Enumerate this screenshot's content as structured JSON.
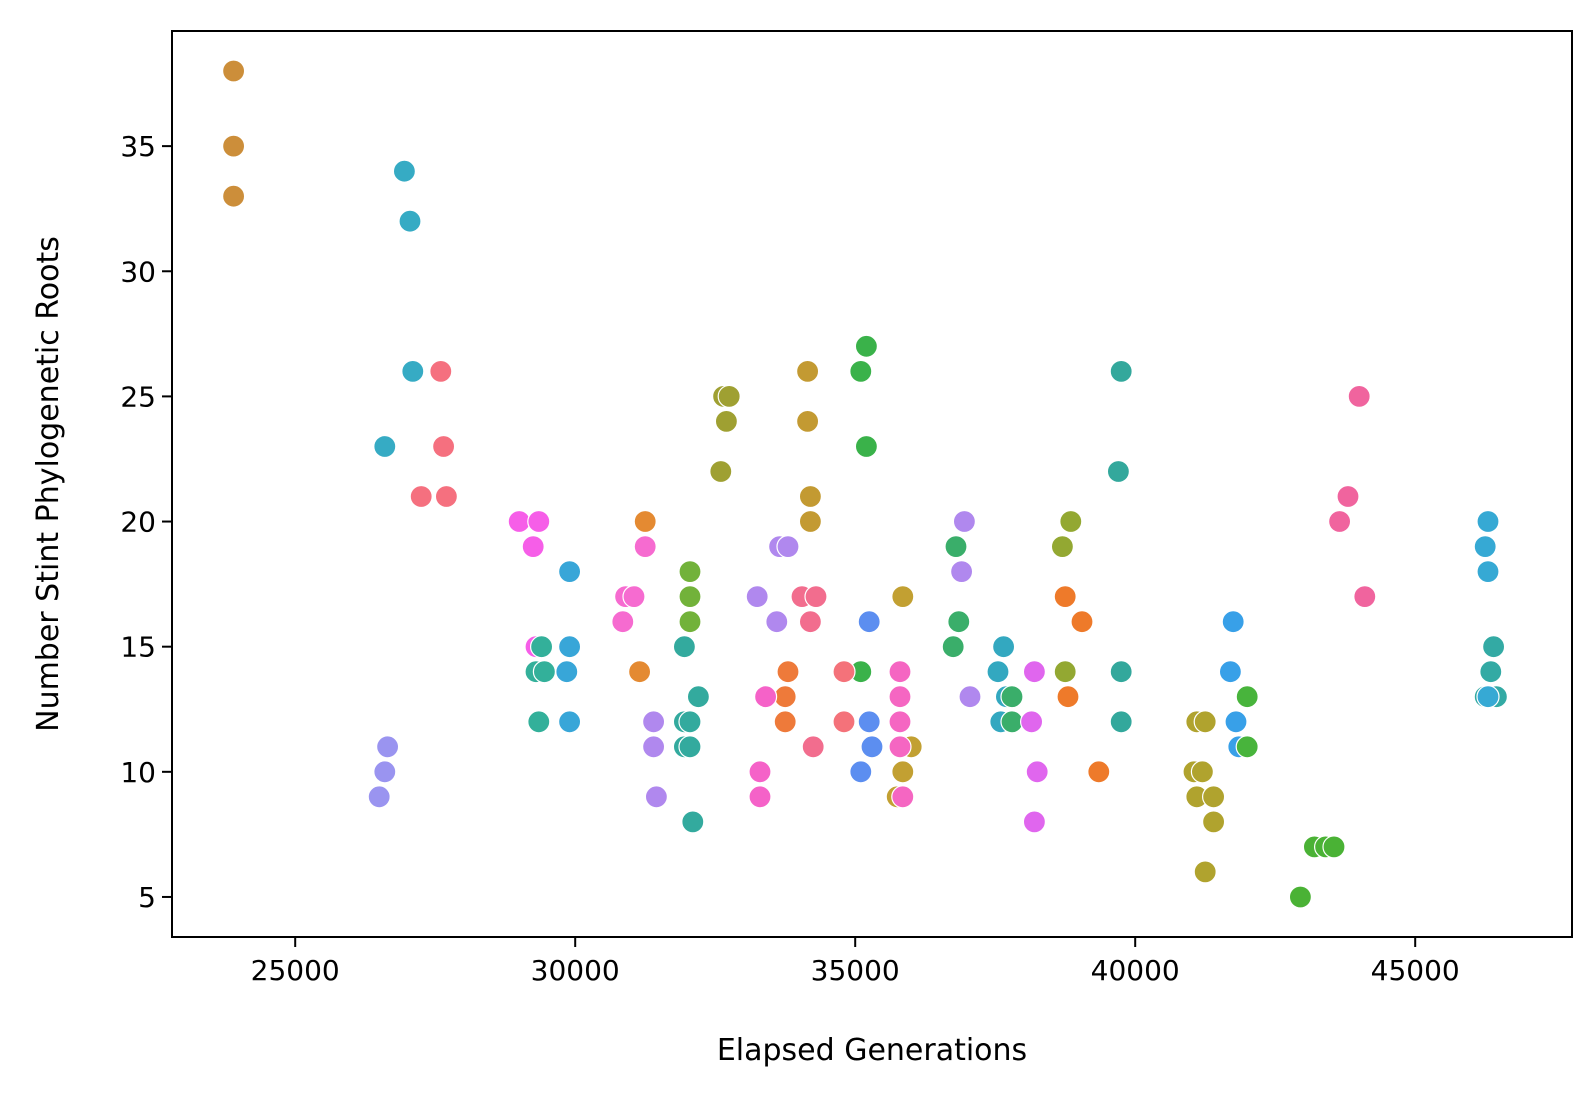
{
  "chart_data": {
    "type": "scatter",
    "title": "",
    "xlabel": "Elapsed Generations",
    "ylabel": "Number Stint Phylogenetic Roots",
    "xlim": [
      22800,
      47800
    ],
    "ylim": [
      3.4,
      39.6
    ],
    "xticks": [
      25000,
      30000,
      35000,
      40000,
      45000
    ],
    "yticks": [
      5,
      10,
      15,
      20,
      25,
      30,
      35
    ],
    "xtick_labels": [
      "25000",
      "30000",
      "35000",
      "40000",
      "45000"
    ],
    "ytick_labels": [
      "5",
      "10",
      "15",
      "20",
      "25",
      "30",
      "35"
    ],
    "grid": false,
    "legend": "none",
    "points": [
      {
        "x": 23900,
        "y": 38,
        "color": "#cc8e3a"
      },
      {
        "x": 23900,
        "y": 35,
        "color": "#cc8e3a"
      },
      {
        "x": 23900,
        "y": 33,
        "color": "#cc8e3a"
      },
      {
        "x": 26950,
        "y": 34,
        "color": "#36abc4"
      },
      {
        "x": 27050,
        "y": 32,
        "color": "#36abc4"
      },
      {
        "x": 27100,
        "y": 26,
        "color": "#36abc4"
      },
      {
        "x": 26600,
        "y": 23,
        "color": "#36abc4"
      },
      {
        "x": 27600,
        "y": 26,
        "color": "#f5707f"
      },
      {
        "x": 27650,
        "y": 23,
        "color": "#f5707f"
      },
      {
        "x": 27250,
        "y": 21,
        "color": "#f5707f"
      },
      {
        "x": 27700,
        "y": 21,
        "color": "#f5707f"
      },
      {
        "x": 26650,
        "y": 11,
        "color": "#9a94f0"
      },
      {
        "x": 26600,
        "y": 10,
        "color": "#9a94f0"
      },
      {
        "x": 26500,
        "y": 9,
        "color": "#9a94f0"
      },
      {
        "x": 29000,
        "y": 20,
        "color": "#f65ee8"
      },
      {
        "x": 29350,
        "y": 20,
        "color": "#f65ee8"
      },
      {
        "x": 29250,
        "y": 19,
        "color": "#f65ee8"
      },
      {
        "x": 29300,
        "y": 15,
        "color": "#f65ee8"
      },
      {
        "x": 29400,
        "y": 15,
        "color": "#33b09a"
      },
      {
        "x": 29300,
        "y": 14,
        "color": "#33b09a"
      },
      {
        "x": 29450,
        "y": 14,
        "color": "#33b09a"
      },
      {
        "x": 29350,
        "y": 12,
        "color": "#33b09a"
      },
      {
        "x": 29900,
        "y": 18,
        "color": "#38a6d8"
      },
      {
        "x": 29900,
        "y": 15,
        "color": "#38a6d8"
      },
      {
        "x": 29850,
        "y": 14,
        "color": "#38a6d8"
      },
      {
        "x": 29900,
        "y": 12,
        "color": "#38a6d8"
      },
      {
        "x": 30900,
        "y": 17,
        "color": "#f66bd0"
      },
      {
        "x": 31050,
        "y": 17,
        "color": "#f66bd0"
      },
      {
        "x": 30850,
        "y": 16,
        "color": "#f66bd0"
      },
      {
        "x": 31250,
        "y": 20,
        "color": "#e48a32"
      },
      {
        "x": 31250,
        "y": 19,
        "color": "#f66bd0"
      },
      {
        "x": 31150,
        "y": 14,
        "color": "#e48a32"
      },
      {
        "x": 31400,
        "y": 12,
        "color": "#b088ee"
      },
      {
        "x": 31400,
        "y": 11,
        "color": "#b088ee"
      },
      {
        "x": 31450,
        "y": 9,
        "color": "#b088ee"
      },
      {
        "x": 32050,
        "y": 18,
        "color": "#72b23a"
      },
      {
        "x": 32050,
        "y": 17,
        "color": "#72b23a"
      },
      {
        "x": 32050,
        "y": 16,
        "color": "#72b23a"
      },
      {
        "x": 31950,
        "y": 15,
        "color": "#33aa9e"
      },
      {
        "x": 32200,
        "y": 13,
        "color": "#33aa9e"
      },
      {
        "x": 31950,
        "y": 12,
        "color": "#33aa9e"
      },
      {
        "x": 32050,
        "y": 12,
        "color": "#33aa9e"
      },
      {
        "x": 31950,
        "y": 11,
        "color": "#33aa9e"
      },
      {
        "x": 32050,
        "y": 11,
        "color": "#33aa9e"
      },
      {
        "x": 32100,
        "y": 8,
        "color": "#33aa9e"
      },
      {
        "x": 32650,
        "y": 25,
        "color": "#9fa032"
      },
      {
        "x": 32750,
        "y": 25,
        "color": "#9fa032"
      },
      {
        "x": 32700,
        "y": 24,
        "color": "#9fa032"
      },
      {
        "x": 32600,
        "y": 22,
        "color": "#9fa032"
      },
      {
        "x": 34150,
        "y": 26,
        "color": "#c39a32"
      },
      {
        "x": 34150,
        "y": 24,
        "color": "#c39a32"
      },
      {
        "x": 34200,
        "y": 21,
        "color": "#c39a32"
      },
      {
        "x": 34200,
        "y": 20,
        "color": "#c39a32"
      },
      {
        "x": 33650,
        "y": 19,
        "color": "#b088ee"
      },
      {
        "x": 33800,
        "y": 19,
        "color": "#b088ee"
      },
      {
        "x": 33250,
        "y": 17,
        "color": "#b088ee"
      },
      {
        "x": 33600,
        "y": 16,
        "color": "#b088ee"
      },
      {
        "x": 34050,
        "y": 17,
        "color": "#f26d8e"
      },
      {
        "x": 34300,
        "y": 17,
        "color": "#f26d8e"
      },
      {
        "x": 34200,
        "y": 16,
        "color": "#f26d8e"
      },
      {
        "x": 34250,
        "y": 11,
        "color": "#f26d8e"
      },
      {
        "x": 33800,
        "y": 14,
        "color": "#ee7a3a"
      },
      {
        "x": 33750,
        "y": 13,
        "color": "#ee7a3a"
      },
      {
        "x": 33750,
        "y": 12,
        "color": "#ee7a3a"
      },
      {
        "x": 33400,
        "y": 13,
        "color": "#f562c8"
      },
      {
        "x": 33300,
        "y": 10,
        "color": "#f562c8"
      },
      {
        "x": 33300,
        "y": 9,
        "color": "#f562c8"
      },
      {
        "x": 35200,
        "y": 27,
        "color": "#3ab24a"
      },
      {
        "x": 35100,
        "y": 26,
        "color": "#3ab24a"
      },
      {
        "x": 35200,
        "y": 23,
        "color": "#3ab24a"
      },
      {
        "x": 35100,
        "y": 14,
        "color": "#3ab24a"
      },
      {
        "x": 34800,
        "y": 14,
        "color": "#f4727a"
      },
      {
        "x": 34800,
        "y": 12,
        "color": "#f4727a"
      },
      {
        "x": 35250,
        "y": 16,
        "color": "#5c8ef0"
      },
      {
        "x": 35250,
        "y": 12,
        "color": "#5c8ef0"
      },
      {
        "x": 35300,
        "y": 11,
        "color": "#5c8ef0"
      },
      {
        "x": 35100,
        "y": 10,
        "color": "#5c8ef0"
      },
      {
        "x": 35850,
        "y": 17,
        "color": "#c2a032"
      },
      {
        "x": 36000,
        "y": 11,
        "color": "#c2a032"
      },
      {
        "x": 35850,
        "y": 10,
        "color": "#c2a032"
      },
      {
        "x": 35750,
        "y": 9,
        "color": "#c2a032"
      },
      {
        "x": 35800,
        "y": 14,
        "color": "#f566c2"
      },
      {
        "x": 35800,
        "y": 13,
        "color": "#f566c2"
      },
      {
        "x": 35800,
        "y": 12,
        "color": "#f566c2"
      },
      {
        "x": 35800,
        "y": 11,
        "color": "#f566c2"
      },
      {
        "x": 35850,
        "y": 9,
        "color": "#f566c2"
      },
      {
        "x": 36950,
        "y": 20,
        "color": "#b088ee"
      },
      {
        "x": 36900,
        "y": 18,
        "color": "#b088ee"
      },
      {
        "x": 37050,
        "y": 13,
        "color": "#b088ee"
      },
      {
        "x": 36800,
        "y": 19,
        "color": "#3aae6a"
      },
      {
        "x": 36850,
        "y": 16,
        "color": "#3aae6a"
      },
      {
        "x": 36750,
        "y": 15,
        "color": "#3aae6a"
      },
      {
        "x": 37650,
        "y": 15,
        "color": "#33a8c0"
      },
      {
        "x": 37550,
        "y": 14,
        "color": "#33a8c0"
      },
      {
        "x": 37700,
        "y": 13,
        "color": "#33a8c0"
      },
      {
        "x": 37800,
        "y": 13,
        "color": "#3aae6a"
      },
      {
        "x": 37600,
        "y": 12,
        "color": "#33a8c0"
      },
      {
        "x": 37800,
        "y": 12,
        "color": "#3aae6a"
      },
      {
        "x": 38200,
        "y": 14,
        "color": "#e066ee"
      },
      {
        "x": 38150,
        "y": 12,
        "color": "#e066ee"
      },
      {
        "x": 38250,
        "y": 10,
        "color": "#e066ee"
      },
      {
        "x": 38200,
        "y": 8,
        "color": "#e066ee"
      },
      {
        "x": 38850,
        "y": 20,
        "color": "#93a832"
      },
      {
        "x": 38700,
        "y": 19,
        "color": "#93a832"
      },
      {
        "x": 38750,
        "y": 14,
        "color": "#93a832"
      },
      {
        "x": 38750,
        "y": 17,
        "color": "#ee7a2a"
      },
      {
        "x": 39050,
        "y": 16,
        "color": "#ee7a2a"
      },
      {
        "x": 38800,
        "y": 13,
        "color": "#ee7a2a"
      },
      {
        "x": 39350,
        "y": 10,
        "color": "#ee7a2a"
      },
      {
        "x": 39750,
        "y": 26,
        "color": "#33a89c"
      },
      {
        "x": 39700,
        "y": 22,
        "color": "#33a89c"
      },
      {
        "x": 39750,
        "y": 14,
        "color": "#33a89c"
      },
      {
        "x": 39750,
        "y": 12,
        "color": "#33a89c"
      },
      {
        "x": 41100,
        "y": 12,
        "color": "#b0a32e"
      },
      {
        "x": 41250,
        "y": 12,
        "color": "#b0a32e"
      },
      {
        "x": 41050,
        "y": 10,
        "color": "#b0a32e"
      },
      {
        "x": 41200,
        "y": 10,
        "color": "#b0a32e"
      },
      {
        "x": 41100,
        "y": 9,
        "color": "#b0a32e"
      },
      {
        "x": 41400,
        "y": 9,
        "color": "#b0a32e"
      },
      {
        "x": 41400,
        "y": 8,
        "color": "#b0a32e"
      },
      {
        "x": 41250,
        "y": 6,
        "color": "#b0a32e"
      },
      {
        "x": 41750,
        "y": 16,
        "color": "#38a0e8"
      },
      {
        "x": 41700,
        "y": 14,
        "color": "#38a0e8"
      },
      {
        "x": 41800,
        "y": 12,
        "color": "#38a0e8"
      },
      {
        "x": 41850,
        "y": 11,
        "color": "#38a0e8"
      },
      {
        "x": 42000,
        "y": 13,
        "color": "#48b43c"
      },
      {
        "x": 42000,
        "y": 11,
        "color": "#48b43c"
      },
      {
        "x": 42950,
        "y": 5,
        "color": "#4ab235"
      },
      {
        "x": 43200,
        "y": 7,
        "color": "#4ab235"
      },
      {
        "x": 43400,
        "y": 7,
        "color": "#4ab235"
      },
      {
        "x": 43550,
        "y": 7,
        "color": "#4ab235"
      },
      {
        "x": 44000,
        "y": 25,
        "color": "#f0649e"
      },
      {
        "x": 43800,
        "y": 21,
        "color": "#f0649e"
      },
      {
        "x": 43650,
        "y": 20,
        "color": "#f0649e"
      },
      {
        "x": 44100,
        "y": 17,
        "color": "#f0649e"
      },
      {
        "x": 46300,
        "y": 20,
        "color": "#36a9d4"
      },
      {
        "x": 46250,
        "y": 19,
        "color": "#36a9d4"
      },
      {
        "x": 46300,
        "y": 18,
        "color": "#36a9d4"
      },
      {
        "x": 46400,
        "y": 15,
        "color": "#33aaa4"
      },
      {
        "x": 46350,
        "y": 14,
        "color": "#33aaa4"
      },
      {
        "x": 46250,
        "y": 13,
        "color": "#33aaa4"
      },
      {
        "x": 46450,
        "y": 13,
        "color": "#33aaa4"
      },
      {
        "x": 46300,
        "y": 13,
        "color": "#36a9d4"
      }
    ]
  }
}
